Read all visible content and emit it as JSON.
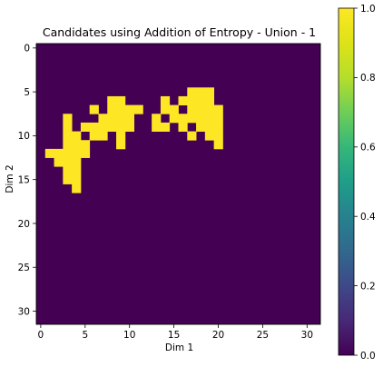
{
  "chart_data": {
    "type": "heatmap",
    "title": "Candidates using Addition of Entropy - Union - 1",
    "xlabel": "Dim 1",
    "ylabel": "Dim 2",
    "rows": 32,
    "cols": 32,
    "xlim": [
      -0.5,
      31.5
    ],
    "ylim": [
      31.5,
      -0.5
    ],
    "x_ticks": [
      0,
      5,
      10,
      15,
      20,
      25,
      30
    ],
    "y_ticks": [
      0,
      5,
      10,
      15,
      20,
      25,
      30
    ],
    "colormap": "viridis",
    "colormap_low": "#440154",
    "colormap_high": "#fde725",
    "colorbar": {
      "range": [
        0,
        1
      ],
      "ticks": [
        "0.0",
        "0.2",
        "0.4",
        "0.6",
        "0.8",
        "1.0"
      ]
    },
    "value_on": 1,
    "value_off": 0,
    "on_cells": {
      "5": [
        17,
        18,
        19
      ],
      "6": [
        8,
        9,
        14,
        16,
        17,
        18,
        19
      ],
      "7": [
        6,
        8,
        9,
        10,
        11,
        14,
        15,
        17,
        18,
        19,
        20
      ],
      "8": [
        3,
        7,
        8,
        9,
        10,
        13,
        15,
        16,
        17,
        18,
        19,
        20
      ],
      "9": [
        3,
        5,
        6,
        7,
        8,
        9,
        10,
        13,
        14,
        16,
        18,
        19,
        20
      ],
      "10": [
        3,
        4,
        6,
        7,
        9,
        17,
        19,
        20
      ],
      "11": [
        3,
        4,
        5,
        9,
        20
      ],
      "12": [
        1,
        2,
        3,
        4,
        5
      ],
      "13": [
        2,
        3,
        4
      ],
      "14": [
        3,
        4
      ],
      "15": [
        3,
        4
      ],
      "16": [
        4
      ]
    }
  }
}
